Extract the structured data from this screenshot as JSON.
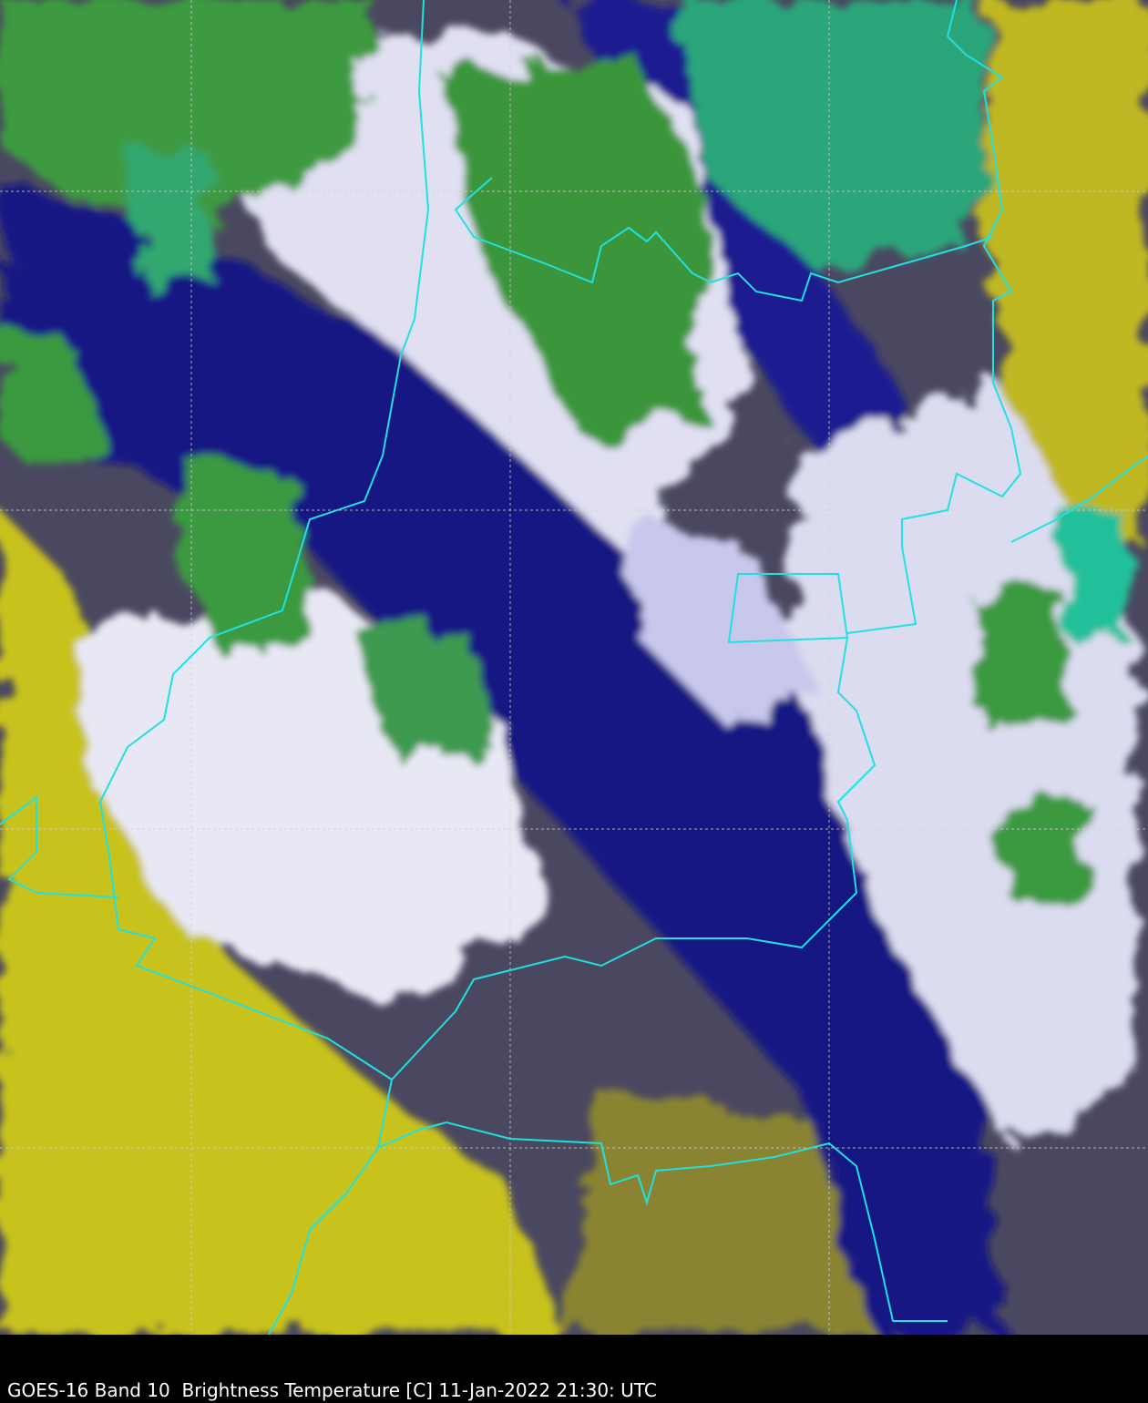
{
  "caption": "GOES-16 Band 10  Brightness Temperature [C] 11-Jan-2022 21:30: UTC",
  "colors": {
    "warm_clear": "#c8c020",
    "mid_level": "#40404f",
    "cold_navy": "#0a0a7a",
    "cloud_white": "#f0f0f8",
    "cold_green": "#3a9a3a",
    "coldest_teal": "#20c0a0",
    "borders": "#20e0e0",
    "gridlines": "#d0d0d0"
  }
}
